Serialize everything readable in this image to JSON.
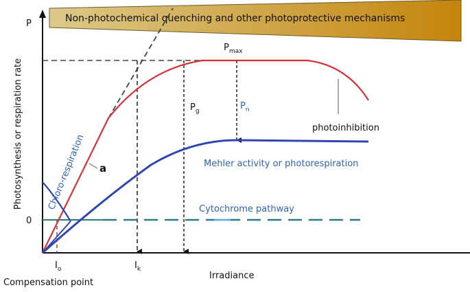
{
  "y_axis_symbol": "P",
  "y_axis_label": "Photosynthesis or respiration rate",
  "banner": "Non-photochemical quenching and other photoprotective mechanisms",
  "labels": {
    "pmax": {
      "main": "P",
      "sub": "max"
    },
    "pg": {
      "main": "P",
      "sub": "g"
    },
    "pn": {
      "main": "P",
      "sub": "n"
    },
    "photoinhibition": "photoinhibition",
    "chlororespiration": "Chloro-respiration",
    "a": "a",
    "mehler": "Mehler activity or photorespiration",
    "cytochrome": "Cytochrome pathway",
    "zero": "0",
    "io": {
      "main": "I",
      "sub": "o"
    },
    "ik": {
      "main": "I",
      "sub": "k"
    },
    "compensation": "Compensation point",
    "x_axis_label": "Irradiance"
  }
}
